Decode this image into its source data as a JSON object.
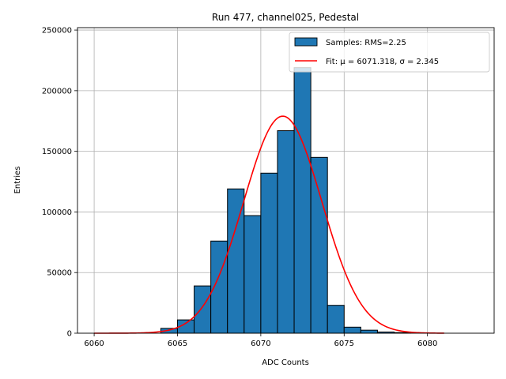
{
  "chart_data": {
    "type": "bar",
    "title": "Run 477, channel025, Pedestal",
    "xlabel": "ADC Counts",
    "ylabel": "Entries",
    "xlim": [
      6059,
      6084
    ],
    "ylim": [
      0,
      252000
    ],
    "xticks": [
      6060,
      6065,
      6070,
      6075,
      6080
    ],
    "yticks": [
      0,
      50000,
      100000,
      150000,
      200000,
      250000
    ],
    "grid": true,
    "legend_position": "top-right",
    "bar_color": "#1f77b4",
    "fit_color": "#ff0000",
    "histogram": {
      "name": "Samples: RMS=2.25",
      "bin_width": 1,
      "bin_starts": [
        6064,
        6065,
        6066,
        6067,
        6068,
        6069,
        6070,
        6071,
        6072,
        6073,
        6074,
        6075,
        6076,
        6077,
        6078
      ],
      "values": [
        4000,
        11000,
        39000,
        76000,
        119000,
        97000,
        132000,
        167000,
        219000,
        145000,
        23000,
        5000,
        2500,
        1000,
        500
      ]
    },
    "fit": {
      "name": "Fit: μ = 6071.318, σ = 2.345",
      "x_range": [
        6060,
        6081
      ],
      "mu": 6071.318,
      "sigma": 2.345,
      "amplitude": 179000
    }
  }
}
